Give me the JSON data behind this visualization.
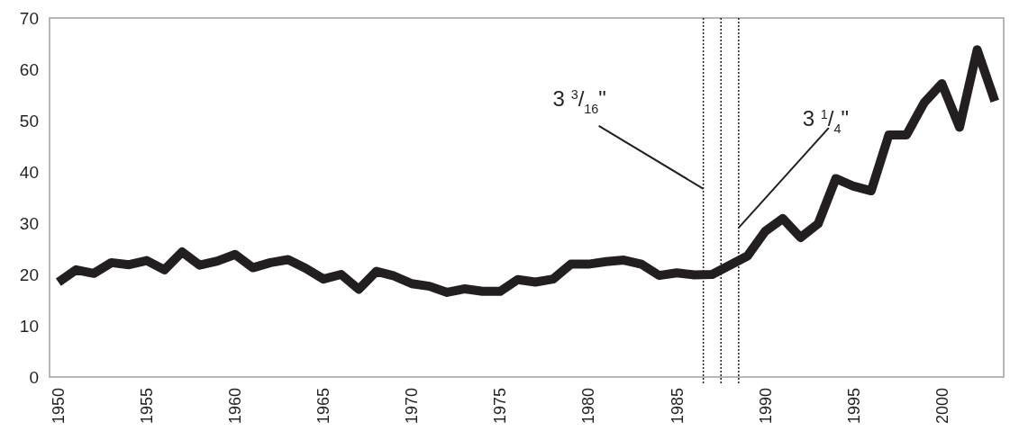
{
  "chart_data": {
    "type": "line",
    "x": [
      1950,
      1951,
      1952,
      1953,
      1954,
      1955,
      1956,
      1957,
      1958,
      1959,
      1960,
      1961,
      1962,
      1963,
      1964,
      1965,
      1966,
      1967,
      1968,
      1969,
      1970,
      1971,
      1972,
      1973,
      1974,
      1975,
      1976,
      1977,
      1978,
      1979,
      1980,
      1981,
      1982,
      1983,
      1984,
      1985,
      1986,
      1987,
      1988,
      1989,
      1990,
      1991,
      1992,
      1993,
      1994,
      1995,
      1996,
      1997,
      1998,
      1999,
      2000,
      2001,
      2002,
      2003
    ],
    "series": [
      {
        "color": "#231f20",
        "values": [
          18.5,
          20.9,
          20.2,
          22.3,
          21.9,
          22.7,
          20.9,
          24.4,
          21.8,
          22.6,
          23.9,
          21.3,
          22.3,
          22.9,
          21.2,
          19.1,
          20.0,
          17.1,
          20.6,
          19.7,
          18.2,
          17.7,
          16.5,
          17.2,
          16.7,
          16.7,
          19.0,
          18.5,
          19.1,
          22.0,
          22.0,
          22.5,
          22.8,
          22.0,
          19.8,
          20.3,
          19.9,
          20.0,
          21.8,
          23.6,
          28.4,
          30.9,
          27.2,
          29.9,
          38.7,
          37.2,
          36.3,
          47.2,
          47.2,
          53.5,
          57.2,
          48.7,
          63.8,
          53.8
        ]
      }
    ],
    "xlim": [
      1949.5,
      2003.5
    ],
    "xticks": [
      1950,
      1955,
      1960,
      1965,
      1970,
      1975,
      1980,
      1985,
      1990,
      1995,
      2000
    ],
    "ylim": [
      0,
      70
    ],
    "yticks": [
      0,
      10,
      20,
      30,
      40,
      50,
      60,
      70
    ],
    "grid": false,
    "marker": "none",
    "line_style": "solid",
    "ref_lines": [
      {
        "axis": "x",
        "value": 1986.5,
        "color": "#231f20",
        "line_style": "dotted"
      },
      {
        "axis": "x",
        "value": 1987.5,
        "color": "#231f20",
        "line_style": "dotted"
      },
      {
        "axis": "x",
        "value": 1988.5,
        "color": "#231f20",
        "line_style": "dotted"
      }
    ],
    "annotations": [
      {
        "text": "3 $^{3}$/$_{16}$\"",
        "x": 1986.5,
        "y": 36.7
      },
      {
        "text": "3 $^{1}$/$_{4}$\"",
        "x": 1988.5,
        "y": 29.1
      }
    ]
  }
}
